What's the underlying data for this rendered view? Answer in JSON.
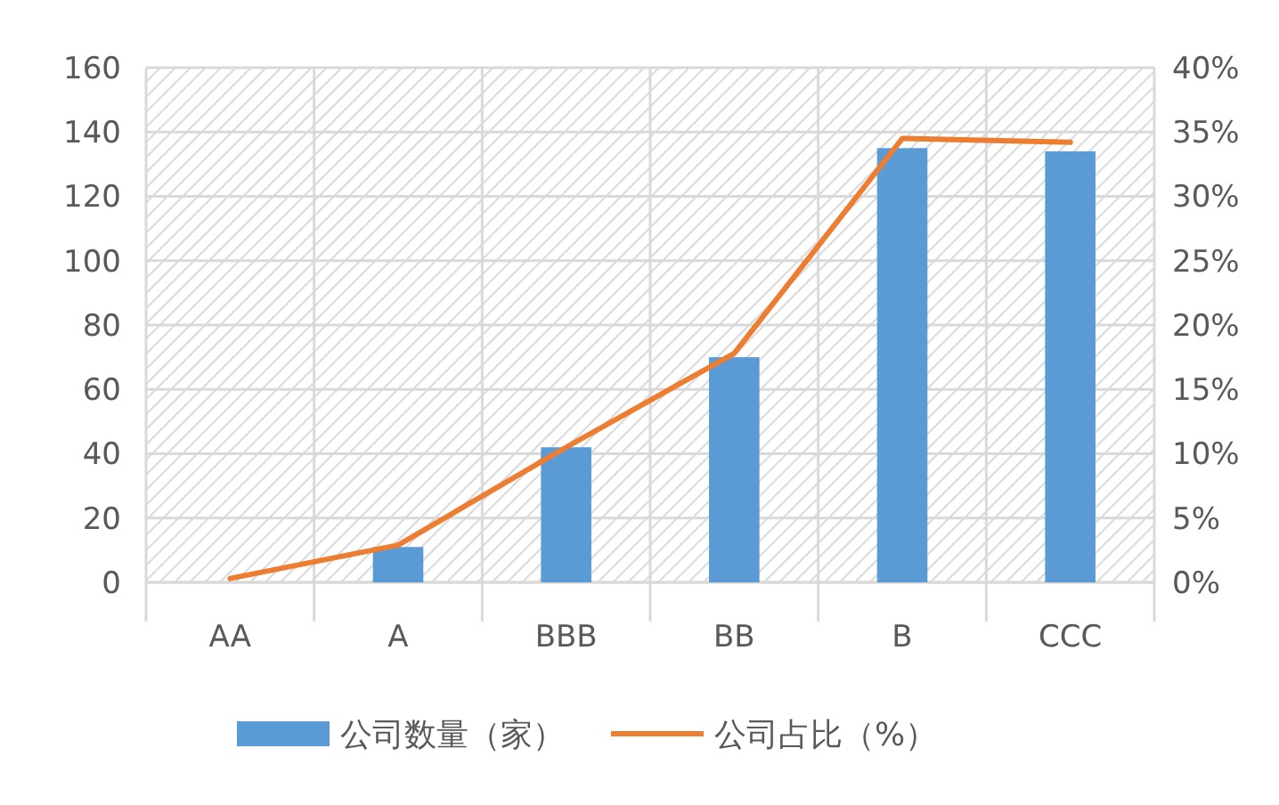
{
  "chart_data": {
    "type": "bar",
    "categories": [
      "AA",
      "A",
      "BBB",
      "BB",
      "B",
      "CCC"
    ],
    "series": [
      {
        "name": "公司数量（家）",
        "color": "#5b9bd5",
        "values": [
          0,
          11,
          42,
          70,
          135,
          134
        ]
      },
      {
        "name": "公司占比（%）",
        "type": "line",
        "axis": "y2",
        "color": "#ed7d31",
        "values": [
          0.3,
          2.9,
          10.5,
          17.8,
          34.5,
          34.2
        ]
      }
    ],
    "ylim": [
      0,
      160
    ],
    "yticks": [
      0,
      20,
      40,
      60,
      80,
      100,
      120,
      140,
      160
    ],
    "y2lim": [
      0,
      40
    ],
    "y2ticks": [
      {
        "value": 0,
        "label": "0%"
      },
      {
        "value": 5,
        "label": "5%"
      },
      {
        "value": 10,
        "label": "10%"
      },
      {
        "value": 15,
        "label": "15%"
      },
      {
        "value": 20,
        "label": "20%"
      },
      {
        "value": 25,
        "label": "25%"
      },
      {
        "value": 30,
        "label": "30%"
      },
      {
        "value": 35,
        "label": "35%"
      },
      {
        "value": 40,
        "label": "40%"
      }
    ],
    "grid": true,
    "legend": "bottom",
    "marker": "none"
  }
}
